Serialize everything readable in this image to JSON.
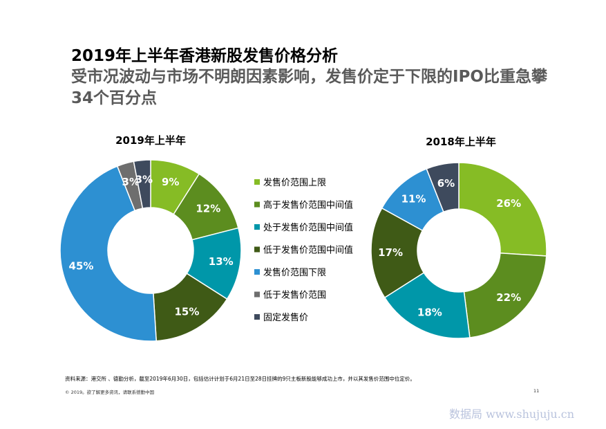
{
  "header": {
    "title": "2019年上半年香港新股发售价格分析",
    "subtitle": "受市况波动与市场不明朗因素影响，发售价定于下限的IPO比重急攀34个百分点"
  },
  "colors": {
    "upper_limit": "#86bc25",
    "above_mid": "#5c8d1f",
    "mid": "#0097a9",
    "below_mid": "#3f5a16",
    "lower_limit": "#2d90d2",
    "below_range": "#6e6e6e",
    "fixed": "#3e4a5d"
  },
  "chart_data": [
    {
      "type": "pie",
      "title": "2019年上半年",
      "categories": [
        "发售价范围上限",
        "高于发售价范围中间值",
        "处于发售价范围中间值",
        "低于发售价范围中间值",
        "发售价范围下限",
        "低于发售价范围",
        "固定发售价"
      ],
      "values": [
        9,
        12,
        13,
        15,
        45,
        3,
        3
      ],
      "labels": [
        "9%",
        "12%",
        "13%",
        "15%",
        "45%",
        "3%",
        "3%"
      ],
      "donut": true
    },
    {
      "type": "pie",
      "title": "2018年上半年",
      "categories": [
        "发售价范围上限",
        "高于发售价范围中间值",
        "处于发售价范围中间值",
        "低于发售价范围中间值",
        "发售价范围下限",
        "固定发售价"
      ],
      "values": [
        26,
        22,
        18,
        17,
        11,
        6
      ],
      "labels": [
        "26%",
        "22%",
        "18%",
        "17%",
        "11%",
        "6%"
      ],
      "donut": true
    }
  ],
  "legend": {
    "items": [
      {
        "label": "发售价范围上限",
        "color": "#86bc25"
      },
      {
        "label": "高于发售价范围中间值",
        "color": "#5c8d1f"
      },
      {
        "label": "处于发售价范围中间值",
        "color": "#0097a9"
      },
      {
        "label": "低于发售价范围中间值",
        "color": "#3f5a16"
      },
      {
        "label": "发售价范围下限",
        "color": "#2d90d2"
      },
      {
        "label": "低于发售价范围",
        "color": "#6e6e6e"
      },
      {
        "label": "固定发售价",
        "color": "#3e4a5d"
      }
    ]
  },
  "footer": {
    "source": "资料来源：港交所 、德勤分析，截至2019年6月30日，包括估计计划于6月21日至28日挂牌的9只主板新股能够成功上市，并以其发售价范围中位定价。",
    "copyright": "© 2019。欲了解更多资讯，请联系德勤中国",
    "page": "11",
    "watermark": "数据局 www.shujuju.cn"
  }
}
